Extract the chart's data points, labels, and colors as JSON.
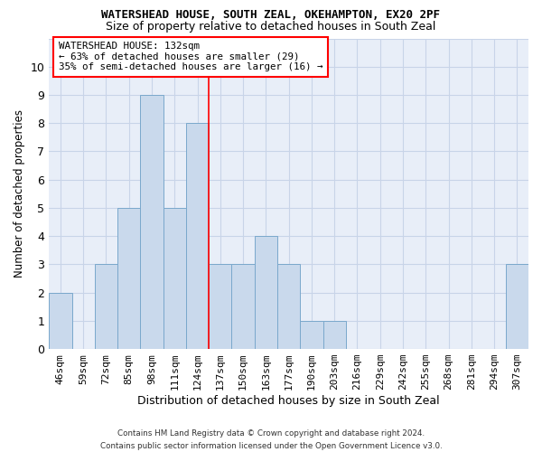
{
  "title": "WATERSHEAD HOUSE, SOUTH ZEAL, OKEHAMPTON, EX20 2PF",
  "subtitle": "Size of property relative to detached houses in South Zeal",
  "xlabel_bottom": "Distribution of detached houses by size in South Zeal",
  "ylabel": "Number of detached properties",
  "categories": [
    "46sqm",
    "59sqm",
    "72sqm",
    "85sqm",
    "98sqm",
    "111sqm",
    "124sqm",
    "137sqm",
    "150sqm",
    "163sqm",
    "177sqm",
    "190sqm",
    "203sqm",
    "216sqm",
    "229sqm",
    "242sqm",
    "255sqm",
    "268sqm",
    "281sqm",
    "294sqm",
    "307sqm"
  ],
  "values": [
    2,
    0,
    3,
    5,
    9,
    5,
    8,
    3,
    3,
    4,
    3,
    1,
    1,
    0,
    0,
    0,
    0,
    0,
    0,
    0,
    3
  ],
  "bar_color": "#c9d9ec",
  "bar_edge_color": "#7aa8cc",
  "grid_color": "#c8d4e8",
  "background_color": "#e8eef8",
  "annotation_line1": "WATERSHEAD HOUSE: 132sqm",
  "annotation_line2": "← 63% of detached houses are smaller (29)",
  "annotation_line3": "35% of semi-detached houses are larger (16) →",
  "red_line_index": 6.5,
  "ylim": [
    0,
    11
  ],
  "yticks": [
    0,
    1,
    2,
    3,
    4,
    5,
    6,
    7,
    8,
    9,
    10,
    11
  ],
  "footer_line1": "Contains HM Land Registry data © Crown copyright and database right 2024.",
  "footer_line2": "Contains public sector information licensed under the Open Government Licence v3.0.",
  "title_fontsize": 9,
  "subtitle_fontsize": 9
}
